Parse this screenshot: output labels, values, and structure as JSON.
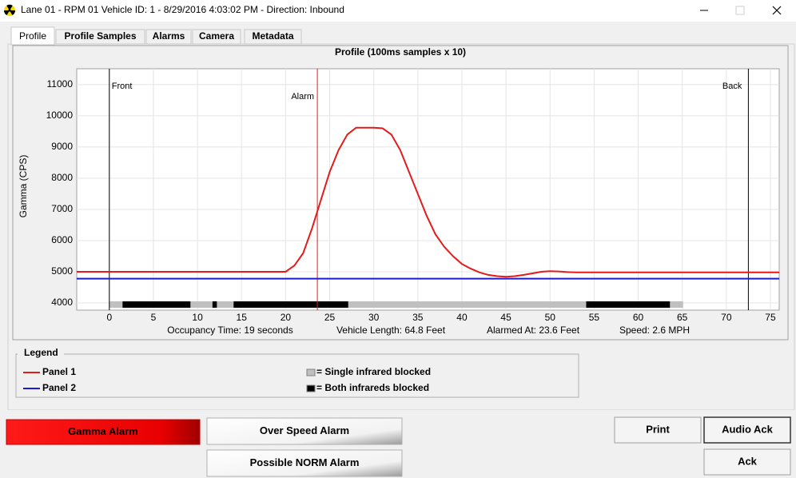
{
  "window": {
    "title": "Lane 01 - RPM 01  Vehicle ID: 1  - 8/29/2016 4:03:02 PM  - Direction: Inbound"
  },
  "tabs": [
    "Profile",
    "Profile Samples",
    "Alarms",
    "Camera",
    "Metadata"
  ],
  "chart_data": {
    "type": "line",
    "title": "Profile (100ms samples x 10)",
    "y_label": "Gamma  (CPS)",
    "xlim": [
      -3.7,
      76
    ],
    "ylim": [
      3770,
      11510
    ],
    "xticks": [
      0,
      5,
      10,
      15,
      20,
      25,
      30,
      35,
      40,
      45,
      50,
      55,
      60,
      65,
      70,
      75
    ],
    "yticks": [
      4000,
      5000,
      6000,
      7000,
      8000,
      9000,
      10000,
      11000
    ],
    "grid": true,
    "series": [
      {
        "name": "Panel 1",
        "color": "#e31b1b",
        "x": [
          -3.7,
          20,
          21,
          22,
          23,
          24,
          25,
          26,
          27,
          28,
          30,
          31,
          32,
          33,
          34,
          35,
          36,
          37,
          38,
          39,
          40,
          41,
          42,
          43,
          44,
          45,
          46,
          47,
          48,
          49,
          50,
          51,
          52,
          53,
          76
        ],
        "values": [
          5000,
          5000,
          5200,
          5600,
          6400,
          7300,
          8200,
          8900,
          9400,
          9620,
          9620,
          9600,
          9400,
          8900,
          8200,
          7500,
          6800,
          6200,
          5800,
          5500,
          5250,
          5100,
          4980,
          4900,
          4860,
          4840,
          4860,
          4900,
          4950,
          5000,
          5020,
          5010,
          4990,
          4980,
          4980
        ]
      },
      {
        "name": "Panel 2",
        "color": "#1c1cc8",
        "x": [
          -3.7,
          76
        ],
        "values": [
          4780,
          4780
        ]
      }
    ],
    "markers": [
      {
        "label": "Front",
        "x": 0,
        "color": "#000000"
      },
      {
        "label": "Alarm",
        "x": 23.6,
        "color": "#e31b1b"
      },
      {
        "label": "Back",
        "x": 72.5,
        "color": "#000000"
      }
    ],
    "infrared": {
      "single": {
        "label": "= Single infrared blocked",
        "color": "#c0c0c0",
        "spans": [
          [
            0,
            65.1
          ]
        ]
      },
      "both": {
        "label": "= Both infrareds blocked",
        "color": "#000000",
        "spans": [
          [
            1.5,
            9.2
          ],
          [
            11.7,
            12.2
          ],
          [
            14.1,
            27.1
          ],
          [
            54.1,
            63.6
          ]
        ]
      }
    },
    "stats": [
      "Occupancy Time: 19 seconds",
      "Vehicle Length: 64.8 Feet",
      "Alarmed At: 23.6 Feet",
      "Speed: 2.6 MPH"
    ]
  },
  "legend": {
    "title": "Legend"
  },
  "buttons": [
    "Gamma Alarm",
    "Over Speed Alarm",
    "Possible NORM Alarm",
    "Print",
    "Audio Ack",
    "Ack"
  ]
}
